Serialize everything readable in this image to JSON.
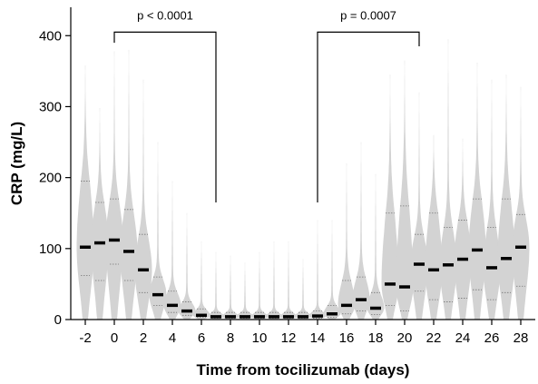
{
  "chart_data": {
    "type": "violin",
    "xlabel": "Time from tocilizumab (days)",
    "ylabel": "CRP (mg/L)",
    "xlim": [
      -3,
      29
    ],
    "ylim": [
      0,
      440
    ],
    "xticks": [
      -2,
      0,
      2,
      4,
      6,
      8,
      10,
      12,
      14,
      16,
      18,
      20,
      22,
      24,
      26,
      28
    ],
    "yticks": [
      0,
      100,
      200,
      300,
      400
    ],
    "x": [
      -2,
      -1,
      0,
      1,
      2,
      3,
      4,
      5,
      6,
      7,
      8,
      9,
      10,
      11,
      12,
      13,
      14,
      15,
      16,
      17,
      18,
      19,
      20,
      21,
      22,
      23,
      24,
      25,
      26,
      27,
      28
    ],
    "median": [
      102,
      108,
      112,
      96,
      70,
      35,
      20,
      12,
      6,
      4,
      4,
      4,
      4,
      4,
      4,
      4,
      5,
      8,
      20,
      28,
      16,
      50,
      46,
      78,
      70,
      77,
      85,
      98,
      73,
      86,
      102
    ],
    "q1": [
      62,
      55,
      78,
      55,
      38,
      20,
      10,
      6,
      3,
      2,
      2,
      2,
      2,
      2,
      2,
      2,
      2,
      3,
      8,
      12,
      7,
      20,
      12,
      40,
      28,
      25,
      30,
      42,
      28,
      38,
      47
    ],
    "q3": [
      195,
      165,
      170,
      155,
      120,
      60,
      40,
      25,
      15,
      10,
      10,
      10,
      10,
      10,
      10,
      10,
      12,
      20,
      55,
      60,
      38,
      150,
      160,
      120,
      150,
      130,
      140,
      170,
      130,
      170,
      148
    ],
    "max": [
      358,
      298,
      378,
      380,
      338,
      250,
      195,
      150,
      110,
      95,
      90,
      80,
      95,
      110,
      110,
      85,
      140,
      140,
      220,
      250,
      205,
      345,
      365,
      320,
      260,
      395,
      255,
      362,
      338,
      345,
      328
    ],
    "comparisons": [
      {
        "from": 0,
        "to": 7,
        "label": "p < 0.0001"
      },
      {
        "from": 14,
        "to": 21,
        "label": "p = 0.0007"
      }
    ]
  }
}
